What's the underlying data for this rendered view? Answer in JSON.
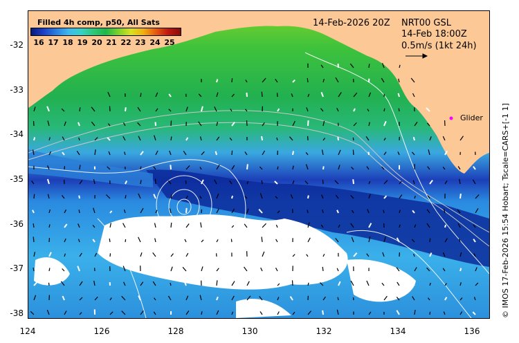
{
  "title": {
    "date": "14-Feb-2026 20Z",
    "source": "NRT00 GSL",
    "time": "14-Feb 18:00Z",
    "scale": "0.5m/s (1kt 24h)"
  },
  "colorbar": {
    "title": "Filled 4h comp, p50, All Sats",
    "ticks": [
      "16",
      "17",
      "18",
      "19",
      "20",
      "21",
      "22",
      "23",
      "24",
      "25"
    ]
  },
  "axes": {
    "x_ticks": [
      "124",
      "126",
      "128",
      "130",
      "132",
      "134",
      "136"
    ],
    "y_ticks": [
      "-32",
      "-33",
      "-34",
      "-35",
      "-36",
      "-37",
      "-38"
    ]
  },
  "marker": {
    "label": "Glider",
    "color": "#ff00ff"
  },
  "credit": "© IMOS 17-Feb-2026 15:54 Hobart; Tscale=CARS+[-1 1]",
  "colors": {
    "land": "#fbc896",
    "cloud": "#ffffff"
  }
}
